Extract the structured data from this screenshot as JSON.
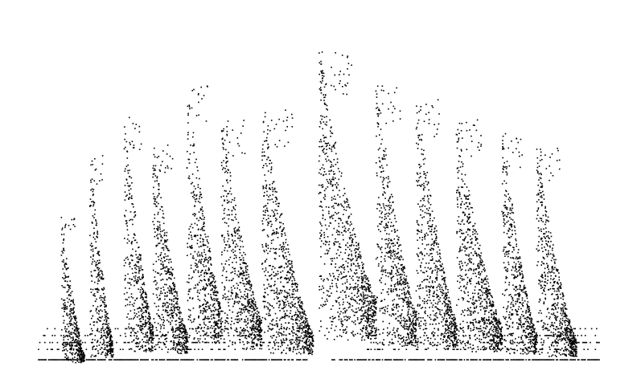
{
  "chart_data": {
    "type": "scatter",
    "title": "",
    "xlabel": "",
    "ylabel": "",
    "xlim": [
      0,
      100
    ],
    "ylim": [
      0,
      100
    ],
    "grid": false,
    "axes_visible": false,
    "legend": null,
    "point_color": "#000000",
    "description_of_structure": "",
    "groups": [
      {
        "x_start": 5,
        "x_end": 9,
        "peak": 44,
        "base": 4
      },
      {
        "x_start": 10,
        "x_end": 14,
        "peak": 62,
        "base": 8
      },
      {
        "x_start": 16,
        "x_end": 21,
        "peak": 73,
        "base": 12
      },
      {
        "x_start": 21,
        "x_end": 27,
        "peak": 66,
        "base": 10
      },
      {
        "x_start": 27,
        "x_end": 33,
        "peak": 82,
        "base": 18
      },
      {
        "x_start": 33,
        "x_end": 40,
        "peak": 72,
        "base": 14
      },
      {
        "x_start": 40,
        "x_end": 49,
        "peak": 75,
        "base": 10
      },
      {
        "x_start": 50,
        "x_end": 60,
        "peak": 92,
        "base": 20
      },
      {
        "x_start": 60,
        "x_end": 67,
        "peak": 82,
        "base": 16
      },
      {
        "x_start": 67,
        "x_end": 74,
        "peak": 78,
        "base": 14
      },
      {
        "x_start": 74,
        "x_end": 82,
        "peak": 72,
        "base": 12
      },
      {
        "x_start": 82,
        "x_end": 88,
        "peak": 68,
        "base": 10
      },
      {
        "x_start": 88,
        "x_end": 95,
        "peak": 64,
        "base": 8
      }
    ],
    "baseline_rows": [
      2.5,
      5.5,
      7.5,
      9.5,
      11.5
    ]
  }
}
